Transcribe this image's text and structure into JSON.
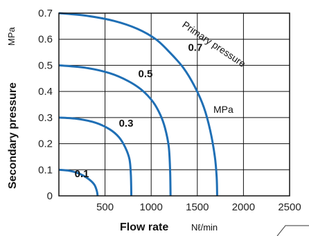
{
  "chart_data": {
    "type": "line",
    "xlabel": "Flow rate",
    "xunit": "Nℓ/min",
    "ylabel": "Secondary pressure",
    "yunit": "MPa",
    "xlim": [
      0,
      2500
    ],
    "ylim": [
      0,
      0.7
    ],
    "x_ticks": [
      "500",
      "1000",
      "1500",
      "2000",
      "2500"
    ],
    "y_ticks": [
      "0",
      "0.1",
      "0.2",
      "0.3",
      "0.4",
      "0.5",
      "0.6",
      "0.7"
    ],
    "grid": true,
    "series_annotation": "Primary pressure",
    "series_annotation_unit": "MPa",
    "line_color": "#1f6fb5",
    "series": [
      {
        "name": "0.1",
        "points": [
          [
            0,
            0.1
          ],
          [
            100,
            0.097
          ],
          [
            200,
            0.088
          ],
          [
            300,
            0.07
          ],
          [
            380,
            0.045
          ],
          [
            410,
            0.02
          ],
          [
            420,
            0
          ]
        ]
      },
      {
        "name": "0.3",
        "points": [
          [
            0,
            0.3
          ],
          [
            200,
            0.295
          ],
          [
            400,
            0.28
          ],
          [
            550,
            0.255
          ],
          [
            650,
            0.225
          ],
          [
            720,
            0.185
          ],
          [
            765,
            0.14
          ],
          [
            780,
            0.08
          ],
          [
            785,
            0
          ]
        ]
      },
      {
        "name": "0.5",
        "points": [
          [
            0,
            0.5
          ],
          [
            300,
            0.49
          ],
          [
            550,
            0.47
          ],
          [
            750,
            0.44
          ],
          [
            900,
            0.405
          ],
          [
            1020,
            0.36
          ],
          [
            1100,
            0.31
          ],
          [
            1150,
            0.26
          ],
          [
            1190,
            0.19
          ],
          [
            1205,
            0.1
          ],
          [
            1210,
            0
          ]
        ]
      },
      {
        "name": "0.7",
        "points": [
          [
            0,
            0.7
          ],
          [
            300,
            0.69
          ],
          [
            600,
            0.67
          ],
          [
            850,
            0.64
          ],
          [
            1050,
            0.6
          ],
          [
            1200,
            0.55
          ],
          [
            1350,
            0.49
          ],
          [
            1470,
            0.42
          ],
          [
            1570,
            0.34
          ],
          [
            1640,
            0.25
          ],
          [
            1690,
            0.15
          ],
          [
            1710,
            0.07
          ],
          [
            1715,
            0
          ]
        ]
      }
    ]
  }
}
